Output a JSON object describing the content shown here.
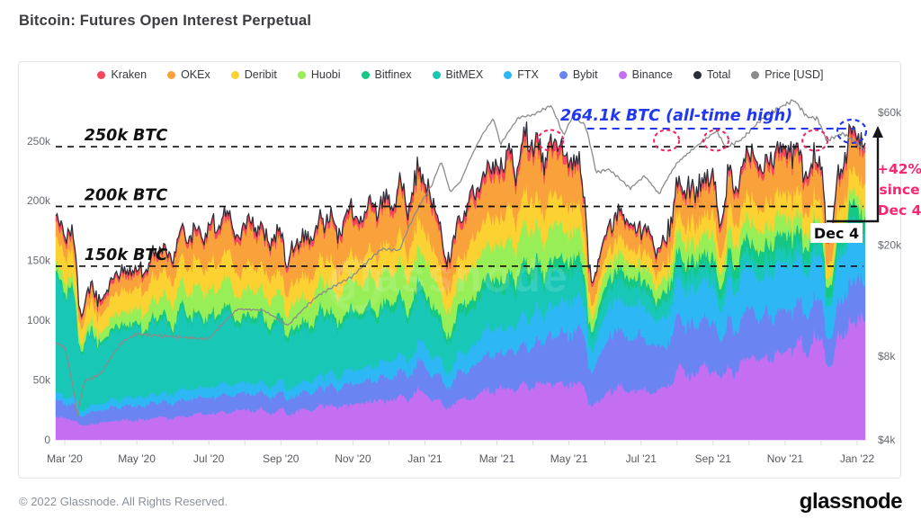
{
  "title": "Bitcoin: Futures Open Interest Perpetual",
  "footer": {
    "copyright": "© 2022 Glassnode. All Rights Reserved.",
    "brand": "glassnode"
  },
  "watermark": "glassnode",
  "chart_data": {
    "type": "area",
    "stacked": true,
    "unit": "k BTC",
    "title": "Bitcoin: Futures Open Interest Perpetual",
    "x_tick_labels": [
      "Mar '20",
      "May '20",
      "Jul '20",
      "Sep '20",
      "Nov '20",
      "Jan '21",
      "Mar '21",
      "May '21",
      "Jul '21",
      "Sep '21",
      "Nov '21",
      "Jan '22"
    ],
    "x_months_start": "Mar '20",
    "y_left": {
      "ticks": [
        {
          "label": "0",
          "value": 0
        },
        {
          "label": "50k",
          "value": 50
        },
        {
          "label": "100k",
          "value": 100
        },
        {
          "label": "150k",
          "value": 150
        },
        {
          "label": "200k",
          "value": 200
        },
        {
          "label": "250k",
          "value": 250
        }
      ],
      "max": 285
    },
    "y_right": {
      "scale": "log",
      "ticks": [
        {
          "label": "$4k",
          "value": 4
        },
        {
          "label": "$8k",
          "value": 8
        },
        {
          "label": "$20k",
          "value": 20
        },
        {
          "label": "$60k",
          "value": 60
        }
      ]
    },
    "series": [
      {
        "name": "Kraken",
        "color": "#f6465d",
        "values": [
          5,
          4,
          4,
          4,
          5,
          6,
          5,
          5,
          6,
          6,
          7,
          7,
          8,
          8,
          7,
          4,
          4,
          5,
          6,
          6,
          7,
          6,
          7
        ]
      },
      {
        "name": "OKEx",
        "color": "#f9a13b",
        "values": [
          12,
          10,
          12,
          16,
          24,
          28,
          26,
          28,
          30,
          32,
          34,
          30,
          34,
          38,
          33,
          17,
          15,
          21,
          25,
          28,
          30,
          24,
          26
        ]
      },
      {
        "name": "Deribit",
        "color": "#fbd231",
        "values": [
          22,
          16,
          18,
          20,
          22,
          20,
          18,
          19,
          20,
          22,
          24,
          22,
          24,
          26,
          23,
          13,
          12,
          15,
          17,
          19,
          20,
          16,
          18
        ]
      },
      {
        "name": "Huobi",
        "color": "#97ee56",
        "values": [
          8,
          8,
          12,
          18,
          22,
          21,
          20,
          22,
          24,
          26,
          28,
          26,
          28,
          30,
          25,
          13,
          12,
          15,
          17,
          17,
          15,
          9,
          9
        ]
      },
      {
        "name": "Bitfinex",
        "color": "#16c784",
        "values": [
          4,
          3,
          3,
          4,
          4,
          5,
          5,
          5,
          5,
          6,
          7,
          8,
          9,
          10,
          9,
          8,
          7,
          9,
          10,
          11,
          12,
          11,
          12
        ]
      },
      {
        "name": "BitMEX",
        "color": "#18c7b6",
        "values": [
          90,
          55,
          58,
          60,
          58,
          52,
          48,
          46,
          44,
          42,
          38,
          35,
          33,
          31,
          25,
          17,
          15,
          14,
          13,
          12,
          12,
          10,
          10
        ]
      },
      {
        "name": "FTX",
        "color": "#2db8f5",
        "values": [
          6,
          6,
          7,
          8,
          9,
          9,
          9,
          10,
          11,
          13,
          16,
          18,
          21,
          24,
          27,
          27,
          26,
          29,
          32,
          34,
          38,
          36,
          40
        ]
      },
      {
        "name": "Bybit",
        "color": "#6a85f1",
        "values": [
          13,
          11,
          12,
          13,
          14,
          14,
          14,
          15,
          17,
          19,
          23,
          26,
          30,
          34,
          44,
          48,
          44,
          42,
          40,
          38,
          34,
          31,
          33
        ]
      },
      {
        "name": "Binance",
        "color": "#c46ef2",
        "values": [
          18,
          15,
          17,
          19,
          22,
          25,
          24,
          27,
          30,
          34,
          39,
          37,
          42,
          46,
          48,
          43,
          41,
          56,
          60,
          66,
          74,
          84,
          100
        ]
      }
    ],
    "total": {
      "name": "Total",
      "color": "#2b2e38"
    },
    "price": {
      "name": "Price [USD]",
      "color": "#8b8b8b",
      "unit": "$k",
      "keyframes": [
        [
          -0.3,
          9.0
        ],
        [
          0,
          8.6
        ],
        [
          0.35,
          4.9
        ],
        [
          0.55,
          6.5
        ],
        [
          1,
          6.9
        ],
        [
          1.6,
          9.0
        ],
        [
          2,
          9.6
        ],
        [
          3,
          9.4
        ],
        [
          4,
          9.2
        ],
        [
          4.8,
          11.8
        ],
        [
          5.5,
          11.7
        ],
        [
          6.2,
          10.3
        ],
        [
          7,
          13.1
        ],
        [
          8,
          15.5
        ],
        [
          8.8,
          19.4
        ],
        [
          9.3,
          19.2
        ],
        [
          9.8,
          27.0
        ],
        [
          10.2,
          33.0
        ],
        [
          10.45,
          40.0
        ],
        [
          10.7,
          31.0
        ],
        [
          11,
          34.0
        ],
        [
          11.6,
          50.0
        ],
        [
          11.9,
          57.0
        ],
        [
          12.1,
          46.0
        ],
        [
          12.6,
          57.5
        ],
        [
          13,
          58.8
        ],
        [
          13.5,
          63.5
        ],
        [
          13.85,
          49.5
        ],
        [
          14.1,
          58.0
        ],
        [
          14.45,
          54.0
        ],
        [
          14.75,
          36.5
        ],
        [
          15.1,
          37.5
        ],
        [
          15.7,
          32.0
        ],
        [
          16.1,
          35.5
        ],
        [
          16.5,
          30.5
        ],
        [
          17,
          39.5
        ],
        [
          17.6,
          46.0
        ],
        [
          18.1,
          51.5
        ],
        [
          18.35,
          44.8
        ],
        [
          18.8,
          48.0
        ],
        [
          19.4,
          57.5
        ],
        [
          19.8,
          62.0
        ],
        [
          20.25,
          66.5
        ],
        [
          20.6,
          58.0
        ],
        [
          20.9,
          57.0
        ],
        [
          21.15,
          47.5
        ],
        [
          21.6,
          50.5
        ],
        [
          22,
          46.5
        ],
        [
          22.3,
          42.5
        ]
      ]
    },
    "crash_events": [
      {
        "month": 0.45,
        "depth": 0.3,
        "fall": 0.1,
        "recover": 0.35
      },
      {
        "month": 6.15,
        "depth": 0.14,
        "fall": 0.05,
        "recover": 0.3
      },
      {
        "month": 10.55,
        "depth": 0.26,
        "fall": 0.25,
        "recover": 0.55
      },
      {
        "month": 14.62,
        "depth": 0.38,
        "fall": 0.15,
        "recover": 0.3
      },
      {
        "month": 16.45,
        "depth": 0.22,
        "fall": 0.12,
        "recover": 0.3
      },
      {
        "month": 18.12,
        "depth": 0.15,
        "fall": 0.06,
        "recover": 0.35
      },
      {
        "month": 21.13,
        "depth": 0.25,
        "fall": 0.05,
        "recover": 0.45
      },
      {
        "month": 21.85,
        "depth": -0.06,
        "fall": 0.2,
        "recover": 0.12
      }
    ],
    "annotations": {
      "hlines": [
        {
          "label": "250k BTC",
          "value": 250
        },
        {
          "label": "200k BTC",
          "value": 200
        },
        {
          "label": "150k BTC",
          "value": 150
        }
      ],
      "ath": {
        "label": "264.1k BTC (all-time high)",
        "value": 264.1,
        "color": "#2238ef",
        "from_month": 14.5,
        "to_month": 21.95
      },
      "red_circles_months": [
        13.49,
        16.71,
        18.08,
        20.83
      ],
      "red_circle_color": "#f5205e",
      "blue_circle_month": 21.85,
      "pct_note": {
        "lines": [
          "+42%",
          "since",
          "Dec 4"
        ],
        "color": "#fb2673"
      },
      "dec4_label": "Dec 4"
    }
  },
  "legend_extra": [
    {
      "name": "Total",
      "color": "#2b2e38"
    },
    {
      "name": "Price [USD]",
      "color": "#8b8b8b"
    }
  ]
}
